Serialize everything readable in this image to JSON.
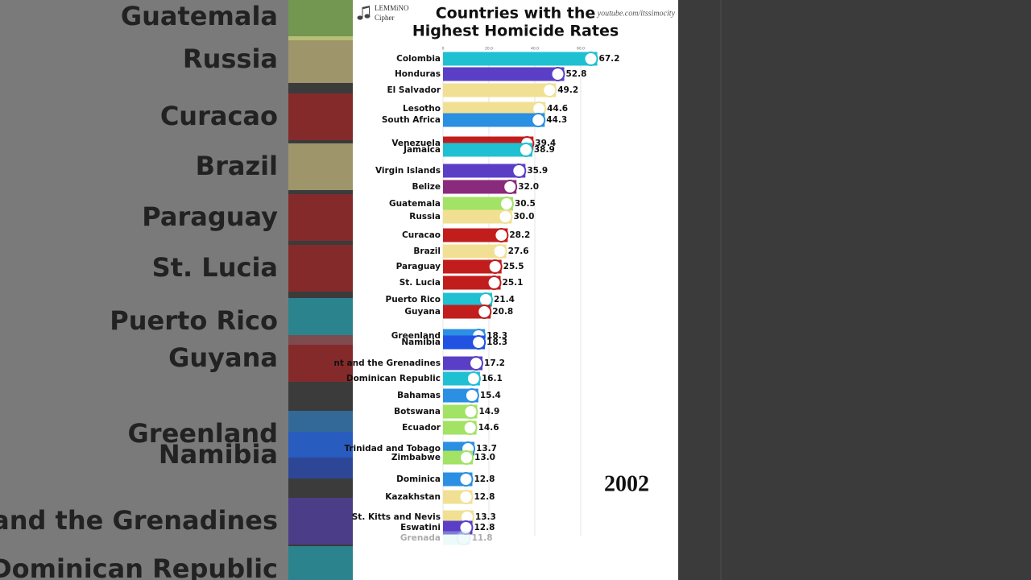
{
  "chart_data": {
    "type": "bar",
    "orientation": "horizontal",
    "title": [
      "Countries with the",
      "Highest Homicide Rates"
    ],
    "channel": [
      "LEMMiNO",
      "Cipher"
    ],
    "watermark": "youtube.com/itssimocity",
    "year": "2002",
    "categories": [
      "Colombia",
      "Honduras",
      "El Salvador",
      "Lesotho",
      "South Africa",
      "Venezuela",
      "Jamaica",
      "Virgin Islands",
      "Belize",
      "Guatemala",
      "Russia",
      "Curacao",
      "Brazil",
      "Paraguay",
      "St. Lucia",
      "Puerto Rico",
      "Guyana",
      "Greenland",
      "Namibia",
      "nt and the Grenadines",
      "Dominican Republic",
      "Bahamas",
      "Botswana",
      "Ecuador",
      "Trinidad and Tobago",
      "Zimbabwe",
      "Dominica",
      "Kazakhstan",
      "St. Kitts and Nevis",
      "Eswatini",
      "Grenada"
    ],
    "values": [
      67.2,
      52.8,
      49.2,
      44.6,
      44.3,
      39.4,
      38.9,
      35.9,
      32.0,
      30.5,
      30.0,
      28.2,
      27.6,
      25.5,
      25.1,
      21.4,
      20.8,
      18.3,
      18.3,
      17.2,
      16.1,
      15.4,
      14.9,
      14.6,
      13.7,
      13.0,
      12.8,
      12.8,
      13.3,
      12.8,
      11.8
    ],
    "value_labels": [
      "67.2",
      "52.8",
      "49.2",
      "44.6",
      "44.3",
      "39.4",
      "38.9",
      "35.9",
      "32.0",
      "30.5",
      "30.0",
      "28.2",
      "27.6",
      "25.5",
      "25.1",
      "21.4",
      "20.8",
      "18.3",
      "18.3",
      "17.2",
      "16.1",
      "15.4",
      "14.9",
      "14.6",
      "13.7",
      "13.0",
      "12.8",
      "12.8",
      "13.3",
      "12.8",
      "11.8"
    ],
    "colors": [
      "#1fc0d2",
      "#5a3fc6",
      "#f1e094",
      "#f1e094",
      "#2b8fe2",
      "#c21d1d",
      "#1fc0d2",
      "#5a3fc6",
      "#8a2a7c",
      "#a2e264",
      "#f1e094",
      "#c21d1d",
      "#f1e094",
      "#c21d1d",
      "#c21d1d",
      "#1fc0d2",
      "#c21d1d",
      "#2b8fe2",
      "#2252e2",
      "#5a3fc6",
      "#1fc0d2",
      "#2b8fe2",
      "#a2e264",
      "#a2e264",
      "#2b8fe2",
      "#a2e264",
      "#2b8fe2",
      "#f1e094",
      "#f1e094",
      "#5a3fc6",
      "#c8f2f2"
    ],
    "xlim": [
      0,
      70
    ],
    "xticks": [
      0,
      {
        "value": 20,
        "label": "20.0"
      },
      {
        "value": 40,
        "label": "40.0"
      },
      {
        "value": 60,
        "label": "60.0"
      }
    ],
    "grid": true
  }
}
